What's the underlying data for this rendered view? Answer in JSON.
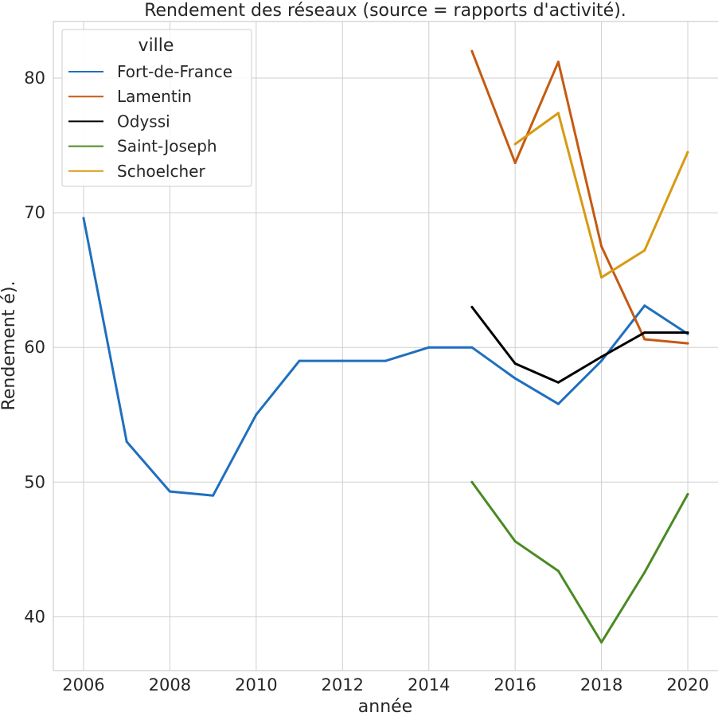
{
  "chart_data": {
    "type": "line",
    "title": "Rendement des réseaux (source = rapports d'activité).",
    "xlabel": "année",
    "ylabel": "Rendement é).",
    "xlim": [
      2005.3,
      2020.7
    ],
    "ylim": [
      36,
      84.2
    ],
    "xticks": [
      2006,
      2008,
      2010,
      2012,
      2014,
      2016,
      2018,
      2020
    ],
    "yticks": [
      40,
      50,
      60,
      70,
      80
    ],
    "grid": true,
    "legend": {
      "title": "ville",
      "placement": "top-left"
    },
    "series": [
      {
        "name": "Fort-de-France",
        "color": "#1f6fbf",
        "x": [
          2006,
          2007,
          2008,
          2009,
          2010,
          2011,
          2012,
          2013,
          2014,
          2015,
          2016,
          2017,
          2018,
          2019,
          2020
        ],
        "y": [
          69.6,
          53.0,
          49.3,
          49.0,
          55.0,
          59.0,
          59.0,
          59.0,
          60.0,
          60.0,
          57.7,
          55.8,
          59.0,
          63.1,
          61.0
        ]
      },
      {
        "name": "Lamentin",
        "color": "#c55a11",
        "x": [
          2015,
          2016,
          2017,
          2018,
          2019,
          2020
        ],
        "y": [
          82.0,
          73.7,
          81.2,
          67.5,
          60.6,
          60.3
        ]
      },
      {
        "name": "Odyssi",
        "color": "#000000",
        "x": [
          2015,
          2016,
          2017,
          2018,
          2019,
          2020
        ],
        "y": [
          63.0,
          58.8,
          57.4,
          59.3,
          61.1,
          61.1
        ]
      },
      {
        "name": "Saint-Joseph",
        "color": "#4a8a23",
        "x": [
          2015,
          2016,
          2017,
          2018,
          2019,
          2020
        ],
        "y": [
          50.0,
          45.6,
          43.4,
          38.1,
          43.3,
          49.1
        ]
      },
      {
        "name": "Schoelcher",
        "color": "#d89a14",
        "x": [
          2016,
          2017,
          2018,
          2019,
          2020
        ],
        "y": [
          75.1,
          77.4,
          65.2,
          67.2,
          74.5
        ]
      }
    ]
  }
}
